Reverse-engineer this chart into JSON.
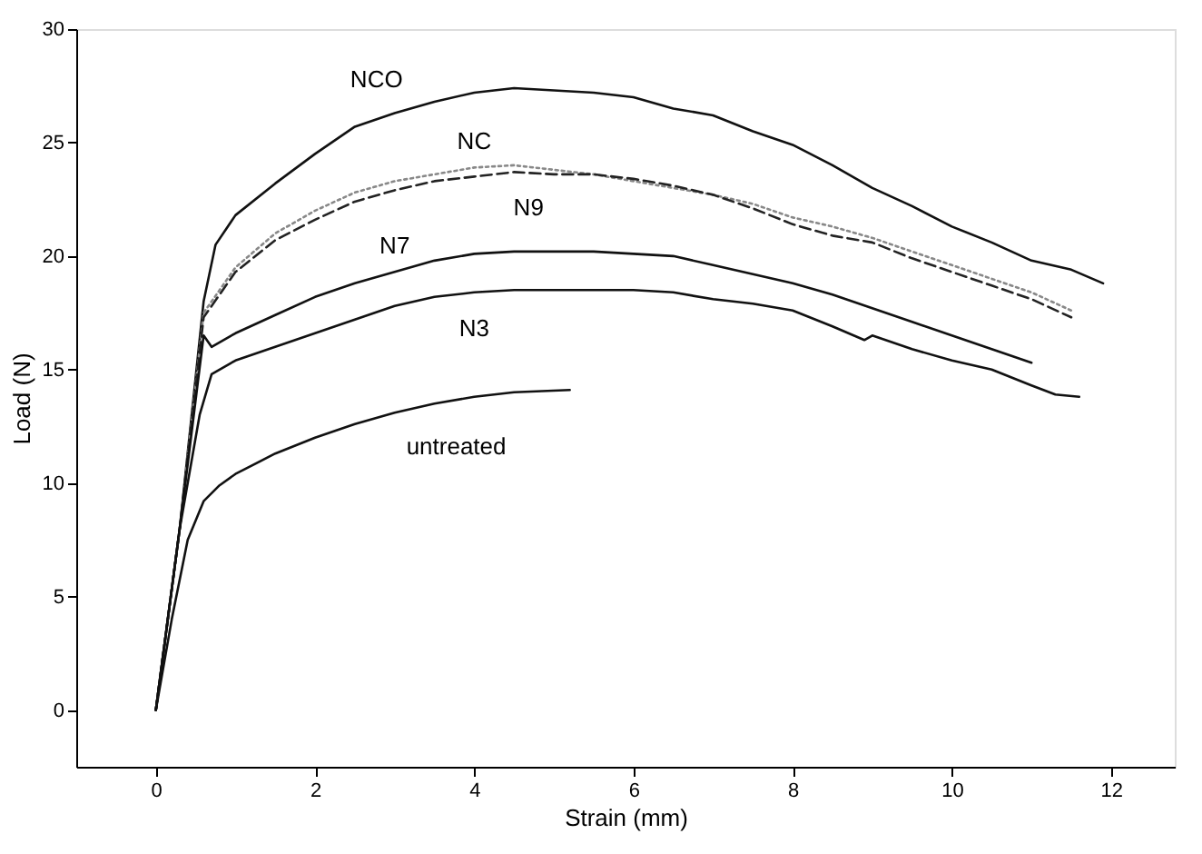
{
  "chart_data": {
    "type": "line",
    "xlabel": "Strain (mm)",
    "ylabel": "Load (N)",
    "xlim": [
      -1,
      12.8
    ],
    "xticks": [
      0,
      2,
      4,
      6,
      8,
      10,
      12
    ],
    "ylim": [
      -2.5,
      30
    ],
    "yticks": [
      0,
      5,
      10,
      15,
      20,
      25,
      30
    ],
    "grid": false,
    "marker": "none",
    "series": [
      {
        "name": "NCO",
        "color": "#111111",
        "line_style": "solid",
        "x": [
          0,
          0.3,
          0.6,
          0.75,
          1,
          1.5,
          2,
          2.5,
          3,
          3.5,
          4,
          4.5,
          5,
          5.5,
          6,
          6.5,
          7,
          7.5,
          8,
          8.5,
          9,
          9.5,
          10,
          10.5,
          11,
          11.5,
          11.9
        ],
        "values": [
          0,
          8,
          18,
          20.5,
          21.8,
          23.2,
          24.5,
          25.7,
          26.3,
          26.8,
          27.2,
          27.4,
          27.3,
          27.2,
          27,
          26.5,
          26.2,
          25.5,
          24.9,
          24,
          23,
          22.2,
          21.3,
          20.6,
          19.8,
          19.4,
          18.8
        ]
      },
      {
        "name": "NC",
        "color": "#888888",
        "line_style": "dotted",
        "x": [
          0,
          0.3,
          0.6,
          1,
          1.5,
          2,
          2.5,
          3,
          3.5,
          4,
          4.5,
          5,
          5.5,
          6,
          6.5,
          7,
          7.5,
          8,
          8.5,
          9,
          9.5,
          10,
          10.5,
          11,
          11.5
        ],
        "values": [
          0,
          8,
          17.5,
          19.5,
          21,
          22,
          22.8,
          23.3,
          23.6,
          23.9,
          24,
          23.8,
          23.6,
          23.3,
          23,
          22.7,
          22.3,
          21.7,
          21.3,
          20.8,
          20.2,
          19.6,
          19,
          18.4,
          17.6
        ]
      },
      {
        "name": "N9",
        "color": "#222222",
        "line_style": "dashed",
        "x": [
          0,
          0.3,
          0.6,
          1,
          1.5,
          2,
          2.5,
          3,
          3.5,
          4,
          4.5,
          5,
          5.5,
          6,
          6.5,
          7,
          7.5,
          8,
          8.5,
          9,
          9.5,
          10,
          10.5,
          11,
          11.5
        ],
        "values": [
          0,
          8,
          17.3,
          19.3,
          20.7,
          21.6,
          22.4,
          22.9,
          23.3,
          23.5,
          23.7,
          23.6,
          23.6,
          23.4,
          23.1,
          22.7,
          22.1,
          21.4,
          20.9,
          20.6,
          19.9,
          19.3,
          18.7,
          18.1,
          17.3
        ]
      },
      {
        "name": "N7",
        "color": "#111111",
        "line_style": "solid",
        "x": [
          0,
          0.3,
          0.6,
          0.7,
          1,
          1.5,
          2,
          2.5,
          3,
          3.5,
          4,
          4.5,
          5,
          5.5,
          6,
          6.5,
          7,
          7.5,
          8,
          8.5,
          9,
          9.5,
          10,
          10.5,
          11
        ],
        "values": [
          0,
          8,
          16.5,
          16,
          16.6,
          17.4,
          18.2,
          18.8,
          19.3,
          19.8,
          20.1,
          20.2,
          20.2,
          20.2,
          20.1,
          20,
          19.6,
          19.2,
          18.8,
          18.3,
          17.7,
          17.1,
          16.5,
          15.9,
          15.3
        ]
      },
      {
        "name": "N3",
        "color": "#111111",
        "line_style": "solid",
        "x": [
          0,
          0.3,
          0.55,
          0.7,
          1,
          1.5,
          2,
          2.5,
          3,
          3.5,
          4,
          4.5,
          5,
          5.5,
          6,
          6.5,
          7,
          7.5,
          8,
          8.5,
          8.9,
          9,
          9.5,
          10,
          10.5,
          11,
          11.3,
          11.6
        ],
        "values": [
          0,
          8,
          13,
          14.8,
          15.4,
          16,
          16.6,
          17.2,
          17.8,
          18.2,
          18.4,
          18.5,
          18.5,
          18.5,
          18.5,
          18.4,
          18.1,
          17.9,
          17.6,
          16.9,
          16.3,
          16.5,
          15.9,
          15.4,
          15,
          14.3,
          13.9,
          13.8
        ]
      },
      {
        "name": "untreated",
        "color": "#111111",
        "line_style": "solid",
        "x": [
          0,
          0.2,
          0.4,
          0.6,
          0.8,
          1,
          1.5,
          2,
          2.5,
          3,
          3.5,
          4,
          4.5,
          5.2
        ],
        "values": [
          0,
          4,
          7.5,
          9.2,
          9.9,
          10.4,
          11.3,
          12,
          12.6,
          13.1,
          13.5,
          13.8,
          14,
          14.1
        ]
      }
    ]
  }
}
